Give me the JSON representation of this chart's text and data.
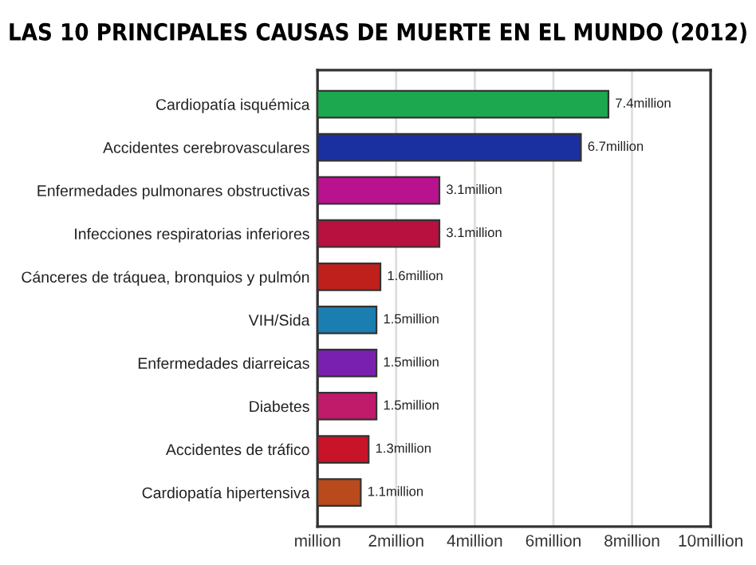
{
  "chart_data": {
    "type": "bar",
    "orientation": "horizontal",
    "title": "LAS 10 PRINCIPALES CAUSAS DE MUERTE EN EL MUNDO (2012)",
    "categories": [
      "Cardiopatía isquémica",
      "Accidentes cerebrovasculares",
      "Enfermedades pulmonares obstructivas",
      "Infecciones respiratorias inferiores",
      "Cánceres de tráquea, bronquios y pulmón",
      "VIH/Sida",
      "Enfermedades diarreicas",
      "Diabetes",
      "Accidentes de tráfico",
      "Cardiopatía hipertensiva"
    ],
    "values": [
      7.4,
      6.7,
      3.1,
      3.1,
      1.6,
      1.5,
      1.5,
      1.5,
      1.3,
      1.1
    ],
    "value_labels": [
      "7.4million",
      "6.7million",
      "3.1million",
      "3.1million",
      "1.6million",
      "1.5million",
      "1.5million",
      "1.5million",
      "1.3million",
      "1.1million"
    ],
    "colors": [
      "#1ca84f",
      "#1a2fa0",
      "#b8128e",
      "#b8103f",
      "#c0201c",
      "#1a7fb0",
      "#7a20b0",
      "#c01a6a",
      "#c81428",
      "#b84a1c"
    ],
    "xlim": [
      0,
      10
    ],
    "xticks": [
      {
        "value": 0,
        "label": "million"
      },
      {
        "value": 2,
        "label": "2million"
      },
      {
        "value": 4,
        "label": "4million"
      },
      {
        "value": 6,
        "label": "6million"
      },
      {
        "value": 8,
        "label": "8million"
      },
      {
        "value": 10,
        "label": "10million"
      }
    ],
    "grid": "x",
    "legend": false
  }
}
